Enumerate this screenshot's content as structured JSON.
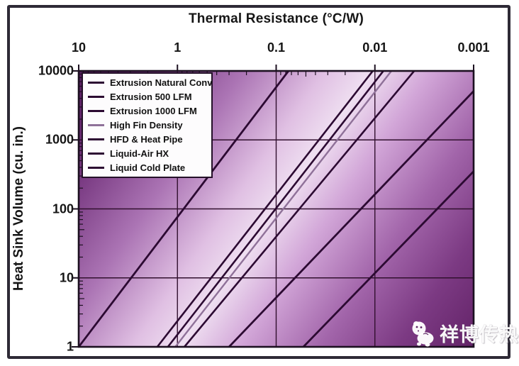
{
  "figure": {
    "background_color": "#ffffff",
    "border_color": "#2e2a36"
  },
  "chart_data": {
    "type": "line",
    "title": "Thermal Resistance (°C/W)",
    "xlabel": "Thermal Resistance (°C/W)",
    "ylabel": "Heat Sink Volume (cu. in.)",
    "x_scale": "log-reversed",
    "y_scale": "log",
    "xlim": [
      10,
      0.001
    ],
    "ylim": [
      1,
      10000
    ],
    "grid": true,
    "legend_position": "top-left",
    "x_ticks": [
      {
        "value": 10,
        "label": "10"
      },
      {
        "value": 1,
        "label": "1"
      },
      {
        "value": 0.1,
        "label": "0.1"
      },
      {
        "value": 0.01,
        "label": "0.01"
      },
      {
        "value": 0.001,
        "label": "0.001"
      }
    ],
    "y_ticks": [
      {
        "value": 10000,
        "label": "10000"
      },
      {
        "value": 1000,
        "label": "1000"
      },
      {
        "value": 100,
        "label": "100"
      },
      {
        "value": 10,
        "label": "10"
      },
      {
        "value": 1,
        "label": "1"
      }
    ],
    "series": [
      {
        "name": "Extrusion Natural Conv",
        "color": "#2c0a32",
        "width": 2.8,
        "points": [
          [
            10,
            1
          ],
          [
            0.075,
            10000
          ]
        ]
      },
      {
        "name": "Extrusion 500 LFM",
        "color": "#2c0a32",
        "width": 2.6,
        "points": [
          [
            1.6,
            1
          ],
          [
            0.0105,
            10000
          ]
        ]
      },
      {
        "name": "Extrusion 1000 LFM",
        "color": "#2c0a32",
        "width": 2.6,
        "points": [
          [
            1.25,
            1
          ],
          [
            0.0082,
            10000
          ]
        ]
      },
      {
        "name": "High Fin Density",
        "color": "#8f7199",
        "width": 2.4,
        "points": [
          [
            1.05,
            1
          ],
          [
            0.0068,
            10000
          ]
        ]
      },
      {
        "name": "HFD & Heat Pipe",
        "color": "#2c0a32",
        "width": 2.6,
        "points": [
          [
            0.85,
            1
          ],
          [
            0.004,
            10000
          ]
        ]
      },
      {
        "name": "Liquid-Air HX",
        "color": "#2c0a32",
        "width": 2.8,
        "points": [
          [
            0.3,
            1
          ],
          [
            0.001,
            5100
          ]
        ]
      },
      {
        "name": "Liquid Cold Plate",
        "color": "#2c0a32",
        "width": 2.8,
        "points": [
          [
            0.053,
            1
          ],
          [
            0.001,
            350
          ]
        ]
      }
    ],
    "plot_background_gradient": {
      "direction": "top-left-to-bottom-right",
      "stops": [
        {
          "offset": 0.0,
          "color": "#551a5e"
        },
        {
          "offset": 0.1,
          "color": "#6e2d77"
        },
        {
          "offset": 0.28,
          "color": "#ab74b4"
        },
        {
          "offset": 0.42,
          "color": "#e0c0e3"
        },
        {
          "offset": 0.5,
          "color": "#efdff1"
        },
        {
          "offset": 0.6,
          "color": "#d2a6d8"
        },
        {
          "offset": 0.74,
          "color": "#a265aa"
        },
        {
          "offset": 0.87,
          "color": "#7c3a83"
        },
        {
          "offset": 1.0,
          "color": "#632368"
        }
      ]
    },
    "grid_color": "#31102e",
    "axis_color": "#1c1020"
  },
  "watermark": {
    "text": "祥博传热",
    "logo_icon": "hippo-mascot"
  }
}
